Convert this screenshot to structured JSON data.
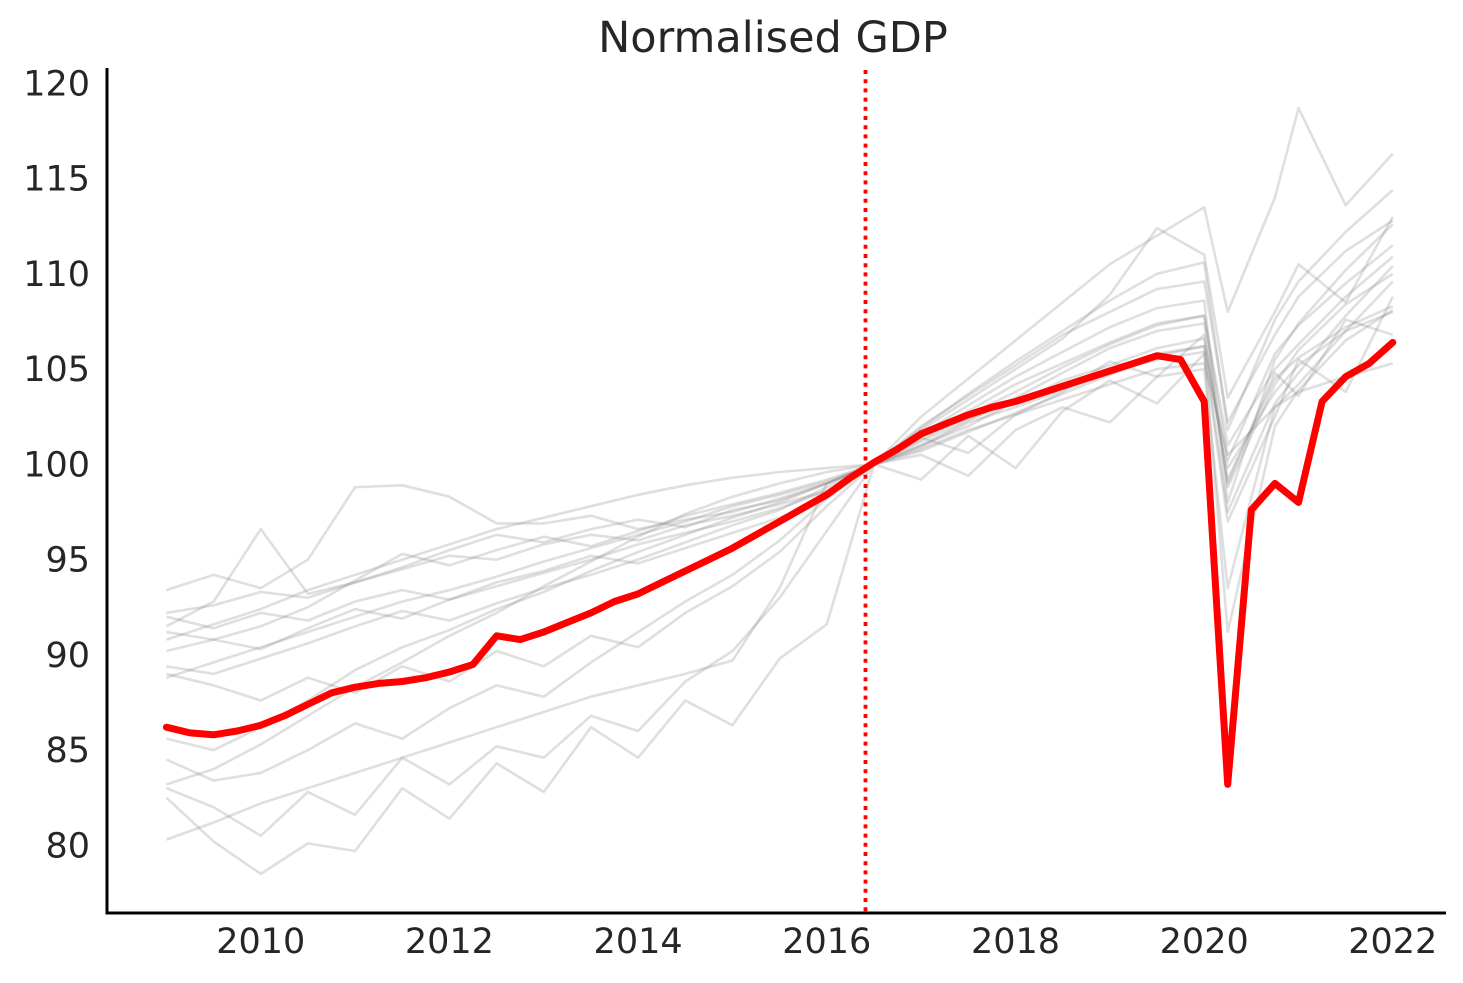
{
  "page": {
    "background": "#ffffff"
  },
  "chart_data": {
    "type": "line",
    "title": "Normalised GDP",
    "xlabel": "",
    "ylabel": "",
    "grid": false,
    "legend": "none",
    "colors": {
      "highlight": "#ff0000",
      "reference_line": "#ff0000",
      "background_series": "#8c8c8c",
      "axis": "#000000",
      "text": "#262626"
    },
    "x_axis": {
      "ticks": [
        2010,
        2012,
        2014,
        2016,
        2018,
        2020,
        2022
      ],
      "lim": [
        2008.37,
        2022.5
      ]
    },
    "y_axis": {
      "ticks": [
        80,
        85,
        90,
        95,
        100,
        105,
        110,
        115,
        120
      ],
      "lim": [
        76.5,
        120.7
      ]
    },
    "reference_line": {
      "x": 2016.41,
      "style": "dotted",
      "color": "#ff0000"
    },
    "highlight_series": {
      "name": "highlighted-gdp",
      "color": "#ff0000",
      "x": [
        2009,
        2009.25,
        2009.5,
        2009.75,
        2010,
        2010.25,
        2010.5,
        2010.75,
        2011,
        2011.25,
        2011.5,
        2011.75,
        2012,
        2012.25,
        2012.5,
        2012.75,
        2013,
        2013.25,
        2013.5,
        2013.75,
        2014,
        2014.25,
        2014.5,
        2014.75,
        2015,
        2015.25,
        2015.5,
        2015.75,
        2016,
        2016.25,
        2016.5,
        2016.75,
        2017,
        2017.25,
        2017.5,
        2017.75,
        2018,
        2018.25,
        2018.5,
        2018.75,
        2019,
        2019.25,
        2019.5,
        2019.75,
        2020,
        2020.25,
        2020.5,
        2020.75,
        2021,
        2021.25,
        2021.5,
        2021.75,
        2022
      ],
      "values": [
        86.2,
        85.9,
        85.8,
        86.0,
        86.3,
        86.8,
        87.4,
        88.0,
        88.3,
        88.5,
        88.6,
        88.8,
        89.1,
        89.5,
        91.0,
        90.8,
        91.2,
        91.7,
        92.2,
        92.8,
        93.2,
        93.8,
        94.4,
        95.0,
        95.6,
        96.3,
        97.0,
        97.7,
        98.4,
        99.3,
        100.1,
        100.8,
        101.6,
        102.1,
        102.6,
        103.0,
        103.3,
        103.7,
        104.1,
        104.5,
        104.9,
        105.3,
        105.7,
        105.5,
        103.3,
        83.2,
        97.6,
        99.0,
        98.0,
        103.3,
        104.6,
        105.3,
        106.4
      ]
    },
    "background_series": {
      "color": "#8c8c8c",
      "opacity": 0.28,
      "x": [
        2009,
        2009.5,
        2010,
        2010.5,
        2011,
        2011.5,
        2012,
        2012.5,
        2013,
        2013.5,
        2014,
        2014.5,
        2015,
        2015.5,
        2016,
        2016.5,
        2017,
        2017.5,
        2018,
        2018.5,
        2019,
        2019.5,
        2020,
        2020.25,
        2020.75,
        2021,
        2021.5,
        2022
      ],
      "series": [
        {
          "name": "series-01",
          "values": [
            93.4,
            94.2,
            93.5,
            95.0,
            98.8,
            98.9,
            98.3,
            96.9,
            96.9,
            97.3,
            96.6,
            97.1,
            97.5,
            98.2,
            99.0,
            100.0,
            100.8,
            101.8,
            102.6,
            103.4,
            104.2,
            105.0,
            105.3,
            100.5,
            103.0,
            103.8,
            104.6,
            105.3
          ]
        },
        {
          "name": "series-02",
          "values": [
            92.2,
            92.6,
            93.3,
            93.0,
            93.8,
            94.5,
            95.2,
            95.0,
            95.8,
            96.3,
            96.0,
            96.8,
            97.3,
            97.9,
            98.6,
            100.0,
            101.2,
            102.4,
            103.2,
            104.4,
            105.2,
            106.1,
            106.6,
            99.2,
            104.5,
            105.6,
            107.2,
            108.3
          ]
        },
        {
          "name": "series-03",
          "values": [
            92.0,
            91.4,
            92.2,
            91.8,
            92.8,
            93.4,
            92.9,
            93.8,
            94.4,
            95.2,
            94.8,
            95.6,
            96.4,
            97.2,
            98.3,
            100.0,
            101.0,
            102.0,
            103.3,
            104.1,
            105.0,
            105.8,
            106.2,
            97.5,
            103.2,
            104.8,
            107.8,
            110.4
          ]
        },
        {
          "name": "series-04",
          "values": [
            91.5,
            92.8,
            96.6,
            93.2,
            93.8,
            94.6,
            95.5,
            96.3,
            95.9,
            96.6,
            97.1,
            96.7,
            97.6,
            98.1,
            99.0,
            100.0,
            101.5,
            102.8,
            104.2,
            105.3,
            106.4,
            107.4,
            107.8,
            101.0,
            105.0,
            106.3,
            108.8,
            110.9
          ]
        },
        {
          "name": "series-05",
          "values": [
            91.2,
            90.8,
            91.5,
            92.5,
            93.9,
            95.3,
            94.7,
            95.5,
            96.2,
            95.7,
            96.5,
            97.3,
            97.9,
            98.5,
            99.2,
            100.0,
            100.9,
            102.2,
            103.0,
            103.9,
            104.8,
            105.5,
            105.9,
            91.2,
            102.0,
            103.9,
            106.5,
            108.1
          ]
        },
        {
          "name": "series-06",
          "values": [
            90.2,
            90.8,
            90.3,
            91.4,
            92.4,
            91.9,
            92.9,
            93.6,
            94.3,
            95.0,
            95.8,
            96.4,
            97.0,
            97.7,
            98.6,
            100.0,
            101.6,
            103.1,
            104.6,
            105.9,
            107.2,
            108.2,
            108.6,
            98.0,
            105.5,
            107.4,
            110.2,
            112.6
          ]
        },
        {
          "name": "series-07",
          "values": [
            89.4,
            89.0,
            89.8,
            90.6,
            91.5,
            92.3,
            91.8,
            92.7,
            93.5,
            94.2,
            95.0,
            95.9,
            96.8,
            97.6,
            98.8,
            100.0,
            101.8,
            103.4,
            105.0,
            106.6,
            108.9,
            112.4,
            111.0,
            103.5,
            108.0,
            110.5,
            108.5,
            113.0
          ]
        },
        {
          "name": "series-08",
          "values": [
            88.8,
            89.6,
            90.4,
            91.2,
            92.0,
            92.8,
            93.4,
            94.1,
            94.9,
            95.6,
            96.3,
            97.0,
            97.8,
            98.4,
            99.1,
            100.0,
            100.7,
            101.7,
            102.7,
            103.7,
            104.7,
            105.7,
            106.2,
            99.8,
            103.8,
            105.2,
            107.0,
            108.0
          ]
        },
        {
          "name": "series-09",
          "values": [
            85.6,
            85.0,
            86.2,
            87.6,
            89.2,
            90.4,
            91.3,
            92.4,
            93.3,
            94.4,
            95.4,
            96.3,
            97.2,
            98.0,
            99.0,
            100.0,
            101.3,
            102.6,
            103.8,
            105.1,
            106.3,
            107.3,
            107.8,
            100.2,
            105.8,
            107.3,
            109.5,
            111.5
          ]
        },
        {
          "name": "series-10",
          "values": [
            83.2,
            84.0,
            85.3,
            86.8,
            88.3,
            89.6,
            91.0,
            92.2,
            93.6,
            94.9,
            96.2,
            97.4,
            98.3,
            99.0,
            99.6,
            100.0,
            101.0,
            102.3,
            103.5,
            104.8,
            106.1,
            107.0,
            107.4,
            98.8,
            104.2,
            106.0,
            108.4,
            110.0
          ]
        },
        {
          "name": "series-11",
          "values": [
            82.5,
            80.2,
            78.5,
            80.1,
            79.7,
            83.0,
            81.4,
            84.3,
            82.8,
            86.2,
            84.6,
            87.6,
            86.3,
            89.8,
            91.6,
            100.0,
            99.2,
            101.5,
            99.8,
            102.8,
            104.4,
            103.2,
            105.8,
            97.0,
            102.5,
            105.5,
            103.8,
            108.8
          ]
        },
        {
          "name": "series-12",
          "values": [
            83.0,
            82.0,
            80.5,
            82.8,
            81.6,
            84.6,
            83.2,
            85.2,
            84.6,
            86.8,
            86.0,
            88.6,
            90.2,
            93.0,
            96.5,
            100.0,
            100.5,
            99.4,
            101.8,
            103.0,
            102.2,
            104.6,
            105.0,
            93.5,
            103.0,
            104.2,
            107.0,
            109.6
          ]
        },
        {
          "name": "series-13",
          "values": [
            89.0,
            88.4,
            87.6,
            88.8,
            88.0,
            89.4,
            88.6,
            90.2,
            89.4,
            91.0,
            90.4,
            92.2,
            93.6,
            95.4,
            97.8,
            100.0,
            101.4,
            100.6,
            102.6,
            103.8,
            105.4,
            104.6,
            106.8,
            99.0,
            104.8,
            103.6,
            107.6,
            106.8
          ]
        },
        {
          "name": "series-14",
          "values": [
            84.5,
            83.4,
            83.8,
            85.0,
            86.4,
            85.6,
            87.2,
            88.4,
            87.8,
            89.6,
            91.2,
            92.8,
            94.2,
            96.0,
            98.2,
            100.0,
            102.0,
            103.6,
            105.2,
            106.8,
            108.0,
            109.2,
            109.6,
            102.2,
            106.8,
            108.8,
            111.2,
            112.8
          ]
        },
        {
          "name": "series-15",
          "values": [
            90.8,
            91.6,
            92.4,
            93.4,
            94.2,
            95.0,
            95.8,
            96.6,
            97.2,
            97.8,
            98.4,
            98.9,
            99.3,
            99.6,
            99.8,
            100.0,
            101.9,
            103.7,
            105.4,
            107.0,
            108.6,
            110.0,
            110.6,
            101.8,
            107.6,
            109.6,
            112.2,
            114.4
          ]
        },
        {
          "name": "series-16",
          "values": [
            80.3,
            81.2,
            82.2,
            83.0,
            83.8,
            84.6,
            85.4,
            86.2,
            87.0,
            87.8,
            88.4,
            89.0,
            89.7,
            93.5,
            99.0,
            100.0,
            102.5,
            104.5,
            106.5,
            108.5,
            110.5,
            112.0,
            113.5,
            108.0,
            114.0,
            118.7,
            113.6,
            116.3
          ]
        }
      ]
    }
  }
}
